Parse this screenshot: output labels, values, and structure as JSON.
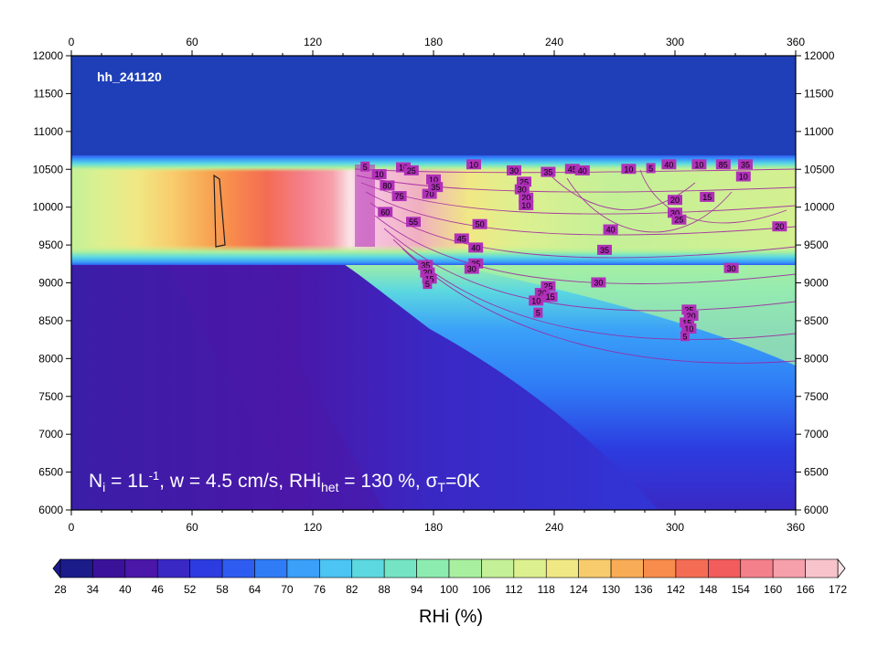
{
  "chart_data": {
    "type": "heatmap",
    "title": "hh_241120",
    "annotation": {
      "n_sym": "N",
      "n_sub": "i",
      "n_rest": " = 1L",
      "n_sup": "-1",
      "w_text": ", w = 4.5 cm/s, RHi",
      "rhi_sub": "het",
      "rhi_rest": " = 130 %, ",
      "sigma": "σ",
      "sigma_sub": "T",
      "sigma_rest": "=0K"
    },
    "x_ticks": [
      "0",
      "60",
      "120",
      "180",
      "240",
      "300",
      "360"
    ],
    "y_ticks": [
      "6000",
      "6500",
      "7000",
      "7500",
      "8000",
      "8500",
      "9000",
      "9500",
      "10000",
      "10500",
      "11000",
      "11500",
      "12000"
    ],
    "xlim": [
      0,
      360
    ],
    "ylim": [
      6000,
      12000
    ],
    "colorbar": {
      "label": "RHi (%)",
      "levels": [
        "28",
        "34",
        "40",
        "46",
        "52",
        "58",
        "64",
        "70",
        "76",
        "82",
        "88",
        "94",
        "100",
        "106",
        "112",
        "118",
        "124",
        "130",
        "136",
        "142",
        "148",
        "154",
        "160",
        "166",
        "172"
      ],
      "colors": [
        "#1b1b8a",
        "#3a129a",
        "#4a17a8",
        "#3a28c4",
        "#2c3ce0",
        "#2f5cf0",
        "#2f7cf6",
        "#3aa0f8",
        "#4cc4f4",
        "#5cd8e0",
        "#74e4c4",
        "#8cecb0",
        "#a8f0a0",
        "#c4f098",
        "#dcf090",
        "#f0e884",
        "#f8cc6c",
        "#f8ac56",
        "#f88c4c",
        "#f46c54",
        "#f25c5c",
        "#f4808c",
        "#f6a0ac",
        "#f8c4cc",
        "#fae4e6"
      ]
    },
    "contour_labels": [
      {
        "t": "5",
        "x": 146,
        "y": 10530
      },
      {
        "t": "10",
        "x": 153,
        "y": 10430
      },
      {
        "t": "80",
        "x": 157,
        "y": 10280
      },
      {
        "t": "75",
        "x": 163,
        "y": 10140
      },
      {
        "t": "70",
        "x": 178,
        "y": 10170
      },
      {
        "t": "60",
        "x": 156,
        "y": 9930
      },
      {
        "t": "55",
        "x": 170,
        "y": 9800
      },
      {
        "t": "50",
        "x": 203,
        "y": 9770
      },
      {
        "t": "45",
        "x": 194,
        "y": 9580
      },
      {
        "t": "40",
        "x": 201,
        "y": 9460
      },
      {
        "t": "35",
        "x": 201,
        "y": 9250
      },
      {
        "t": "30",
        "x": 199,
        "y": 9180
      },
      {
        "t": "35",
        "x": 176,
        "y": 9230
      },
      {
        "t": "20",
        "x": 177,
        "y": 9130
      },
      {
        "t": "15",
        "x": 178,
        "y": 9050
      },
      {
        "t": "5",
        "x": 177,
        "y": 8980
      },
      {
        "t": "10",
        "x": 165,
        "y": 10520
      },
      {
        "t": "25",
        "x": 169,
        "y": 10480
      },
      {
        "t": "10",
        "x": 180,
        "y": 10360
      },
      {
        "t": "35",
        "x": 181,
        "y": 10260
      },
      {
        "t": "10",
        "x": 200,
        "y": 10560
      },
      {
        "t": "30",
        "x": 220,
        "y": 10480
      },
      {
        "t": "35",
        "x": 237,
        "y": 10460
      },
      {
        "t": "25",
        "x": 225,
        "y": 10330
      },
      {
        "t": "45",
        "x": 249,
        "y": 10500
      },
      {
        "t": "40",
        "x": 254,
        "y": 10480
      },
      {
        "t": "30",
        "x": 224,
        "y": 10230
      },
      {
        "t": "20",
        "x": 226,
        "y": 10120
      },
      {
        "t": "10",
        "x": 226,
        "y": 10020
      },
      {
        "t": "10",
        "x": 277,
        "y": 10500
      },
      {
        "t": "5",
        "x": 288,
        "y": 10510
      },
      {
        "t": "40",
        "x": 268,
        "y": 9700
      },
      {
        "t": "35",
        "x": 265,
        "y": 9430
      },
      {
        "t": "30",
        "x": 262,
        "y": 9000
      },
      {
        "t": "25",
        "x": 237,
        "y": 8950
      },
      {
        "t": "20",
        "x": 234,
        "y": 8860
      },
      {
        "t": "15",
        "x": 238,
        "y": 8810
      },
      {
        "t": "10",
        "x": 231,
        "y": 8760
      },
      {
        "t": "5",
        "x": 232,
        "y": 8600
      },
      {
        "t": "40",
        "x": 297,
        "y": 10560
      },
      {
        "t": "10",
        "x": 312,
        "y": 10560
      },
      {
        "t": "85",
        "x": 324,
        "y": 10560
      },
      {
        "t": "35",
        "x": 335,
        "y": 10560
      },
      {
        "t": "10",
        "x": 334,
        "y": 10400
      },
      {
        "t": "15",
        "x": 316,
        "y": 10130
      },
      {
        "t": "20",
        "x": 300,
        "y": 10090
      },
      {
        "t": "30",
        "x": 300,
        "y": 9920
      },
      {
        "t": "25",
        "x": 302,
        "y": 9830
      },
      {
        "t": "20",
        "x": 352,
        "y": 9740
      },
      {
        "t": "30",
        "x": 328,
        "y": 9190
      },
      {
        "t": "25",
        "x": 307,
        "y": 8640
      },
      {
        "t": "20",
        "x": 308,
        "y": 8560
      },
      {
        "t": "15",
        "x": 306,
        "y": 8470
      },
      {
        "t": "10",
        "x": 307,
        "y": 8390
      },
      {
        "t": "5",
        "x": 305,
        "y": 8290
      }
    ]
  }
}
